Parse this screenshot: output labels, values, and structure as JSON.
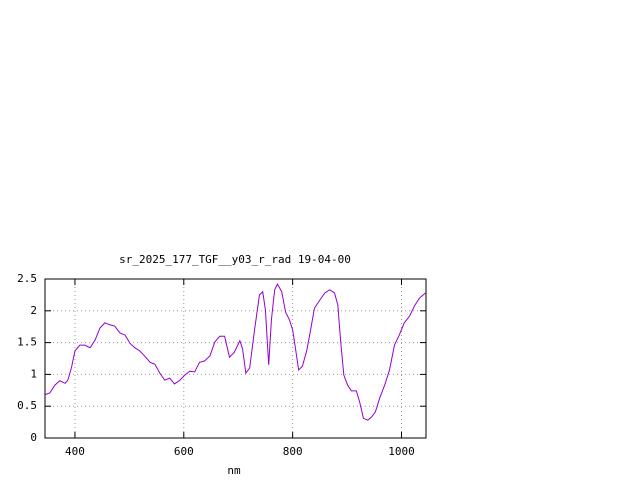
{
  "chart_data": {
    "type": "line",
    "title": "sr_2025_177_TGF__y03_r_rad 19-04-00",
    "x_label": "nm",
    "x": [
      345,
      354,
      363,
      372,
      382,
      387,
      394,
      400,
      409,
      418,
      428,
      437,
      446,
      455,
      464,
      473,
      483,
      492,
      501,
      510,
      519,
      528,
      538,
      547,
      556,
      565,
      574,
      583,
      593,
      602,
      611,
      620,
      629,
      638,
      648,
      657,
      666,
      675,
      684,
      693,
      703,
      708,
      714,
      721,
      730,
      739,
      745,
      750,
      756,
      761,
      767,
      772,
      780,
      787,
      794,
      800,
      805,
      811,
      818,
      826,
      833,
      840,
      850,
      859,
      868,
      877,
      883,
      888,
      894,
      901,
      908,
      917,
      923,
      930,
      938,
      945,
      952,
      960,
      969,
      978,
      987,
      996,
      1005,
      1015,
      1024,
      1033,
      1044
    ],
    "values": [
      0.68,
      0.71,
      0.83,
      0.9,
      0.86,
      0.91,
      1.12,
      1.37,
      1.46,
      1.46,
      1.42,
      1.54,
      1.73,
      1.81,
      1.78,
      1.76,
      1.65,
      1.62,
      1.49,
      1.42,
      1.37,
      1.29,
      1.19,
      1.16,
      1.02,
      0.91,
      0.94,
      0.85,
      0.91,
      0.99,
      1.05,
      1.04,
      1.19,
      1.21,
      1.29,
      1.51,
      1.6,
      1.6,
      1.27,
      1.35,
      1.53,
      1.4,
      1.02,
      1.1,
      1.7,
      2.25,
      2.3,
      2.01,
      1.15,
      1.86,
      2.33,
      2.42,
      2.3,
      1.98,
      1.86,
      1.7,
      1.42,
      1.07,
      1.13,
      1.38,
      1.7,
      2.04,
      2.17,
      2.28,
      2.33,
      2.28,
      2.09,
      1.54,
      0.99,
      0.83,
      0.74,
      0.74,
      0.57,
      0.31,
      0.28,
      0.33,
      0.41,
      0.63,
      0.83,
      1.07,
      1.46,
      1.62,
      1.81,
      1.92,
      2.08,
      2.2,
      2.28
    ],
    "color": "#9400d3",
    "xlim": [
      345,
      1045
    ],
    "ylim": [
      0,
      2.5
    ],
    "xticks": [
      400,
      600,
      800,
      1000
    ],
    "yticks": [
      0,
      0.5,
      1,
      1.5,
      2,
      2.5
    ],
    "grid": true
  }
}
